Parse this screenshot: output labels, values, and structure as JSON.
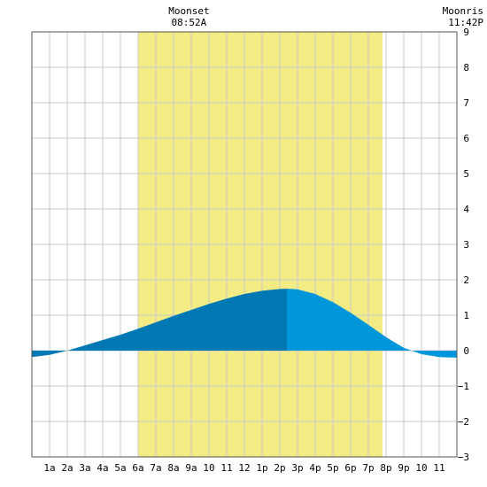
{
  "chart_data": {
    "type": "area",
    "title": "",
    "xlabel": "",
    "ylabel": "",
    "x_tick_labels": [
      "1a",
      "2a",
      "3a",
      "4a",
      "5a",
      "6a",
      "7a",
      "8a",
      "9a",
      "10",
      "11",
      "12",
      "1p",
      "2p",
      "3p",
      "4p",
      "5p",
      "6p",
      "7p",
      "8p",
      "9p",
      "10",
      "11"
    ],
    "xlim": [
      0,
      24
    ],
    "ylim": [
      -3,
      9
    ],
    "y_ticks": [
      -3,
      -2,
      -1,
      0,
      1,
      2,
      3,
      4,
      5,
      6,
      7,
      8,
      9
    ],
    "grid": true,
    "daylight": {
      "start_hour": 6.0,
      "end_hour": 19.8,
      "color": "#f3ec85"
    },
    "annotations": [
      {
        "label": "Moonset",
        "time": "08:52A",
        "hour": 8.87
      },
      {
        "label": "Moonris",
        "time": "11:42P",
        "hour": 23.7
      }
    ],
    "tide_peak_hour": 14.4,
    "colors": {
      "rising": "#0078b4",
      "falling": "#0096db",
      "grid": "#c8c8c8",
      "background": "#ffffff"
    },
    "series": [
      {
        "x": [
          0,
          1,
          2,
          3,
          4,
          5,
          6,
          7,
          8,
          9,
          10,
          11,
          12,
          13,
          14,
          14.4,
          15,
          16,
          17,
          18,
          19,
          20,
          21,
          22,
          23,
          24
        ],
        "values": [
          -0.18,
          -0.12,
          0.0,
          0.15,
          0.3,
          0.45,
          0.62,
          0.8,
          0.98,
          1.15,
          1.32,
          1.47,
          1.6,
          1.69,
          1.74,
          1.75,
          1.73,
          1.6,
          1.37,
          1.07,
          0.73,
          0.38,
          0.08,
          -0.1,
          -0.18,
          -0.2
        ]
      }
    ]
  }
}
